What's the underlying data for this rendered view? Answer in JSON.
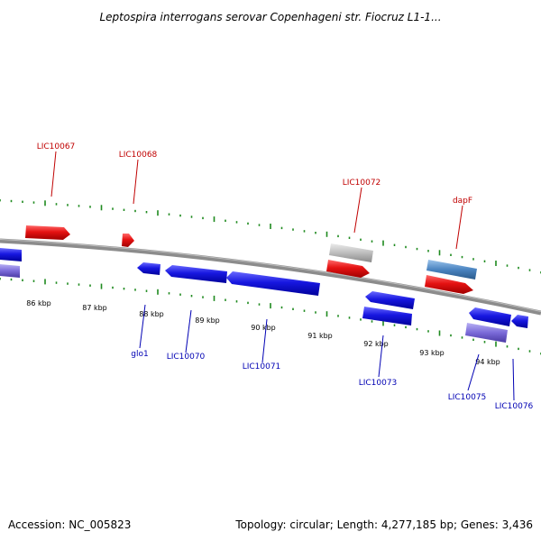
{
  "header": {
    "title": "Leptospira interrogans serovar Copenhageni str. Fiocruz L1-1..."
  },
  "footer": {
    "accession": "Accession: NC_005823",
    "topology": "Topology: circular; Length: 4,277,185 bp; Genes: 3,436"
  },
  "colors": {
    "backbone": "#8c8c8c",
    "dots": "#1f8a1f",
    "forward_gene": "#e01010",
    "reverse_gene": "#1616d0",
    "label_forward": "#c00000",
    "label_reverse": "#0000b4",
    "grey_gene": "#b8b8b8",
    "steelblue_gene": "#4a84c0",
    "purple_gene": "#7a6ad8"
  },
  "scale": {
    "ticks": [
      "86 kbp",
      "87 kbp",
      "88 kbp",
      "89 kbp",
      "90 kbp",
      "91 kbp",
      "92 kbp",
      "93 kbp",
      "94 kbp"
    ]
  },
  "gene_labels": [
    {
      "id": "lic10067",
      "text": "LIC10067",
      "strand": "forward"
    },
    {
      "id": "lic10068",
      "text": "LIC10068",
      "strand": "forward"
    },
    {
      "id": "lic10072",
      "text": "LIC10072",
      "strand": "forward"
    },
    {
      "id": "dapf",
      "text": "dapF",
      "strand": "forward"
    },
    {
      "id": "glo1",
      "text": "glo1",
      "strand": "reverse"
    },
    {
      "id": "lic10070",
      "text": "LIC10070",
      "strand": "reverse"
    },
    {
      "id": "lic10071",
      "text": "LIC10071",
      "strand": "reverse"
    },
    {
      "id": "lic10073",
      "text": "LIC10073",
      "strand": "reverse"
    },
    {
      "id": "lic10075",
      "text": "LIC10075",
      "strand": "reverse"
    },
    {
      "id": "lic10076",
      "text": "LIC10076",
      "strand": "reverse"
    }
  ]
}
